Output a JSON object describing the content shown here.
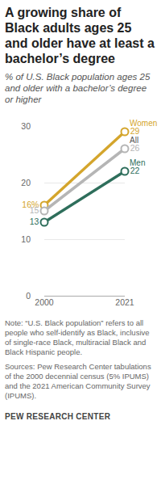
{
  "chart_data": {
    "type": "line",
    "title": "A growing share of Black adults ages 25 and older have at least a bachelor’s degree",
    "subtitle": "% of U.S. Black population ages 25 and older with a bachelor’s degree or higher",
    "note": "Note: “U.S. Black population” refers to all people who self-identify as Black, inclusive of single-race Black, multiracial Black and Black Hispanic people.",
    "source": "Sources: Pew Research Center tabulations of the 2000 decennial census (5% IPUMS) and the 2021 American Community Survey (IPUMS).",
    "credit": "PEW RESEARCH CENTER",
    "x": [
      2000,
      2021
    ],
    "xlim": [
      2000,
      2021
    ],
    "xticks": [
      2000,
      2021
    ],
    "ylim": [
      0,
      30
    ],
    "yticks": [
      0,
      10,
      20,
      30
    ],
    "grid": true,
    "data_labels": true,
    "marker": "open circle",
    "series": [
      {
        "name": "Women",
        "color": "#d4a52c",
        "values": [
          16,
          29
        ],
        "value_labels": [
          "16%",
          "29"
        ]
      },
      {
        "name": "All",
        "color": "#b5b5b5",
        "values": [
          15,
          26
        ],
        "value_labels": [
          "15",
          "26"
        ]
      },
      {
        "name": "Men",
        "color": "#2e6e5b",
        "values": [
          13,
          22
        ],
        "value_labels": [
          "13",
          "22"
        ]
      }
    ]
  }
}
